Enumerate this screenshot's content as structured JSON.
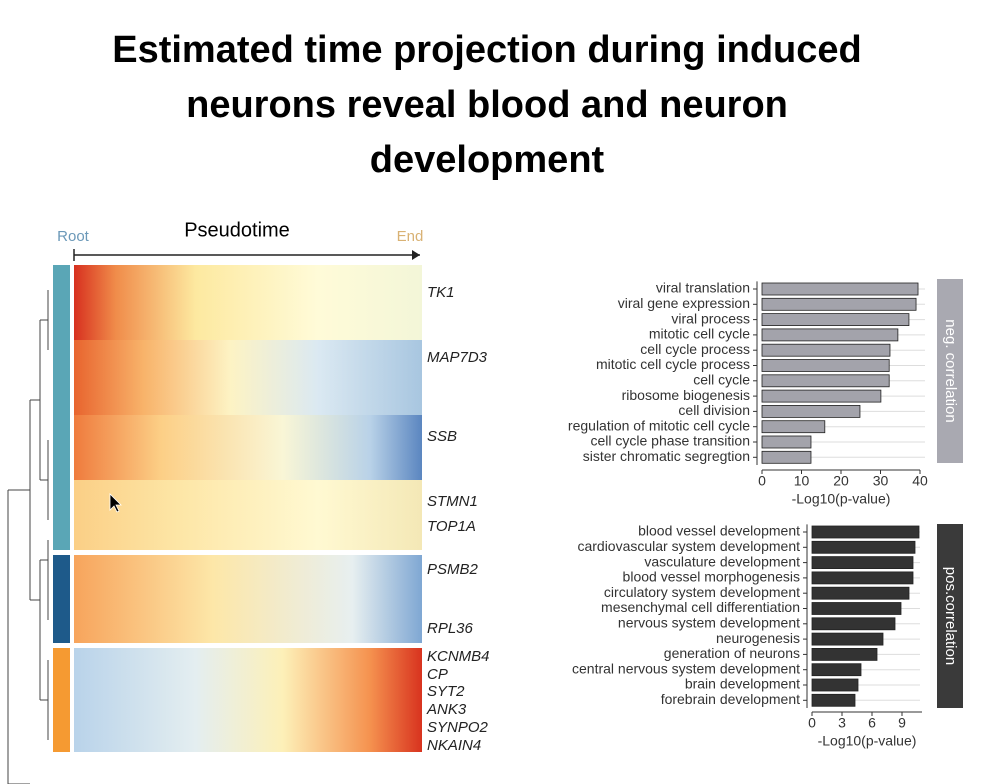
{
  "title_lines": [
    "Estimated time projection during induced",
    "neurons reveal blood and neuron",
    "development"
  ],
  "heatmap": {
    "axis_label": "Pseudotime",
    "start_label": "Root",
    "end_label": "End",
    "genes": [
      "TK1",
      "MAP7D3",
      "SSB",
      "STMN1",
      "TOP1A",
      "PSMB2",
      "RPL36",
      "KCNMB4",
      "CP",
      "SYT2",
      "ANK3",
      "SYNPO2",
      "NKAIN4"
    ]
  },
  "chart_data": [
    {
      "type": "barh",
      "annotation": "neg. correlation",
      "x_label": "-Log10(p-value)",
      "categories": [
        "viral translation",
        "viral gene expression",
        "viral process",
        "mitotic cell cycle",
        "cell cycle process",
        "mitotic cell cycle process",
        "cell cycle",
        "ribosome biogenesis",
        "cell division",
        "regulation of mitotic cell cycle",
        "cell cycle phase transition",
        "sister chromatic segregtion"
      ],
      "values": [
        39.5,
        39,
        37.2,
        34.4,
        32.4,
        32.2,
        32.2,
        30.1,
        24.8,
        15.9,
        12.4,
        12.4
      ],
      "color": "#a3a3ab",
      "xlim": [
        0,
        40
      ],
      "xticks": [
        0,
        10,
        20,
        30,
        40
      ],
      "grid": true,
      "annotation_color": "#a9a9b1"
    },
    {
      "type": "barh",
      "annotation": "pos.correlation",
      "x_label": "-Log10(p-value)",
      "categories": [
        "blood vessel development",
        "cardiovascular system development",
        "vasculature development",
        "blood vessel morphogenesis",
        "circulatory system development",
        "mesenchymal cell differentiation",
        "nervous system development",
        "neurogenesis",
        "generation of neurons",
        "central nervous system development",
        "brain development",
        "forebrain development"
      ],
      "values": [
        10.7,
        10.3,
        10.1,
        10.1,
        9.7,
        8.9,
        8.3,
        7.1,
        6.5,
        4.9,
        4.6,
        4.3
      ],
      "color": "#333333",
      "xlim": [
        0,
        11
      ],
      "xticks": [
        0,
        3,
        6,
        9
      ],
      "grid": true,
      "annotation_color": "#3a3a3a"
    }
  ]
}
